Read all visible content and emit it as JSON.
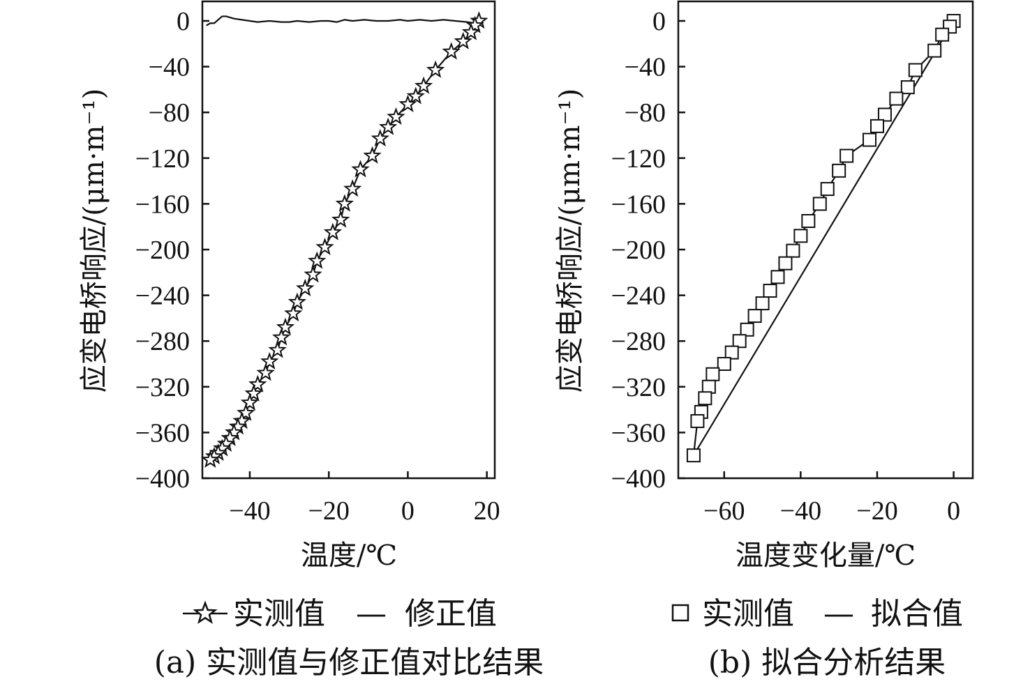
{
  "chart_data": [
    {
      "type": "line",
      "panel_label": "(a)",
      "caption": "(a) 实测值与修正值对比结果",
      "xlabel": "温度/℃",
      "ylabel": "应变电桥响应/(μm·m⁻¹)",
      "xlim": [
        -52,
        22
      ],
      "ylim": [
        -400,
        15
      ],
      "xticks": [
        -40,
        -20,
        0,
        20
      ],
      "yticks": [
        0,
        -40,
        -80,
        -120,
        -160,
        -200,
        -240,
        -280,
        -320,
        -360,
        -400
      ],
      "xtick_labels": [
        "−40",
        "−20",
        "0",
        "20"
      ],
      "ytick_labels": [
        "0",
        "−40",
        "−80",
        "−120",
        "−160",
        "−200",
        "−240",
        "−280",
        "−320",
        "−360",
        "−400"
      ],
      "legend": {
        "placement": "below",
        "entries": [
          "实测值",
          "修正值"
        ]
      },
      "series": [
        {
          "name": "实测值",
          "marker": "star",
          "x": [
            18,
            17,
            16,
            14,
            11,
            7,
            4,
            2,
            0,
            -3,
            -5,
            -7,
            -9,
            -12,
            -14,
            -16,
            -17,
            -19,
            -21,
            -23,
            -24,
            -26,
            -28,
            -29,
            -31,
            -32,
            -33,
            -35,
            -36,
            -38,
            -39,
            -40,
            -41,
            -42,
            -43,
            -44,
            -45,
            -46,
            -47,
            -48,
            -49,
            -50
          ],
          "y": [
            0,
            -4,
            -10,
            -18,
            -27,
            -43,
            -57,
            -66,
            -73,
            -84,
            -93,
            -103,
            -118,
            -130,
            -147,
            -160,
            -174,
            -185,
            -198,
            -210,
            -222,
            -234,
            -246,
            -256,
            -268,
            -277,
            -288,
            -298,
            -308,
            -318,
            -326,
            -334,
            -343,
            -350,
            -355,
            -360,
            -365,
            -370,
            -374,
            -378,
            -381,
            -384
          ]
        },
        {
          "name": "修正值",
          "marker": "none",
          "x": [
            -51,
            -50,
            -49,
            -48,
            -47,
            -46,
            -44,
            -42,
            -40,
            -38,
            -35,
            -32,
            -30,
            -28,
            -25,
            -22,
            -20,
            -18,
            -16,
            -14,
            -11,
            -8,
            -5,
            -2,
            0,
            3,
            6,
            9,
            12,
            15,
            17,
            18
          ],
          "y": [
            -4,
            -2,
            -2,
            1,
            4,
            4,
            2,
            1,
            0,
            -1,
            0,
            -1,
            -1,
            0,
            -1,
            0,
            0,
            -1,
            1,
            0,
            1,
            0,
            0,
            1,
            0,
            1,
            0,
            1,
            0,
            -1,
            -2,
            0
          ]
        }
      ]
    },
    {
      "type": "line",
      "panel_label": "(b)",
      "caption": "(b) 拟合分析结果",
      "xlabel": "温度变化量/℃",
      "ylabel": "应变电桥响应/(μm·m⁻¹)",
      "xlim": [
        -72,
        5
      ],
      "ylim": [
        -400,
        15
      ],
      "xticks": [
        -60,
        -40,
        -20,
        0
      ],
      "yticks": [
        0,
        -40,
        -80,
        -120,
        -160,
        -200,
        -240,
        -280,
        -320,
        -360,
        -400
      ],
      "xtick_labels": [
        "−60",
        "−40",
        "−20",
        "0"
      ],
      "ytick_labels": [
        "0",
        "−40",
        "−80",
        "−120",
        "−160",
        "−200",
        "−240",
        "−280",
        "−320",
        "−360",
        "−400"
      ],
      "legend": {
        "placement": "below",
        "entries": [
          "实测值",
          "拟合值"
        ]
      },
      "series": [
        {
          "name": "实测值",
          "marker": "square",
          "x": [
            0,
            -1,
            -3,
            -5,
            -10,
            -12,
            -15,
            -18,
            -20,
            -22,
            -28,
            -30,
            -33,
            -35,
            -38,
            -40,
            -42,
            -44,
            -46,
            -48,
            -50,
            -52,
            -54,
            -56,
            -58,
            -60,
            -63,
            -64,
            -65,
            -66,
            -67,
            -68
          ],
          "y": [
            0,
            -5,
            -12,
            -26,
            -43,
            -58,
            -68,
            -82,
            -92,
            -104,
            -118,
            -131,
            -147,
            -160,
            -175,
            -188,
            -201,
            -212,
            -224,
            -236,
            -247,
            -258,
            -270,
            -280,
            -290,
            -300,
            -309,
            -320,
            -330,
            -342,
            -350,
            -380
          ]
        },
        {
          "name": "拟合值",
          "marker": "none",
          "x": [
            -68,
            0
          ],
          "y": [
            -380,
            0
          ]
        }
      ]
    }
  ],
  "legend_a": {
    "measured": "实测值",
    "dash": "—",
    "corrected": "修正值"
  },
  "legend_b": {
    "measured": "实测值",
    "dash": "—",
    "fitted": "拟合值"
  },
  "colors": {
    "ink": "#111111",
    "background": "#ffffff"
  }
}
